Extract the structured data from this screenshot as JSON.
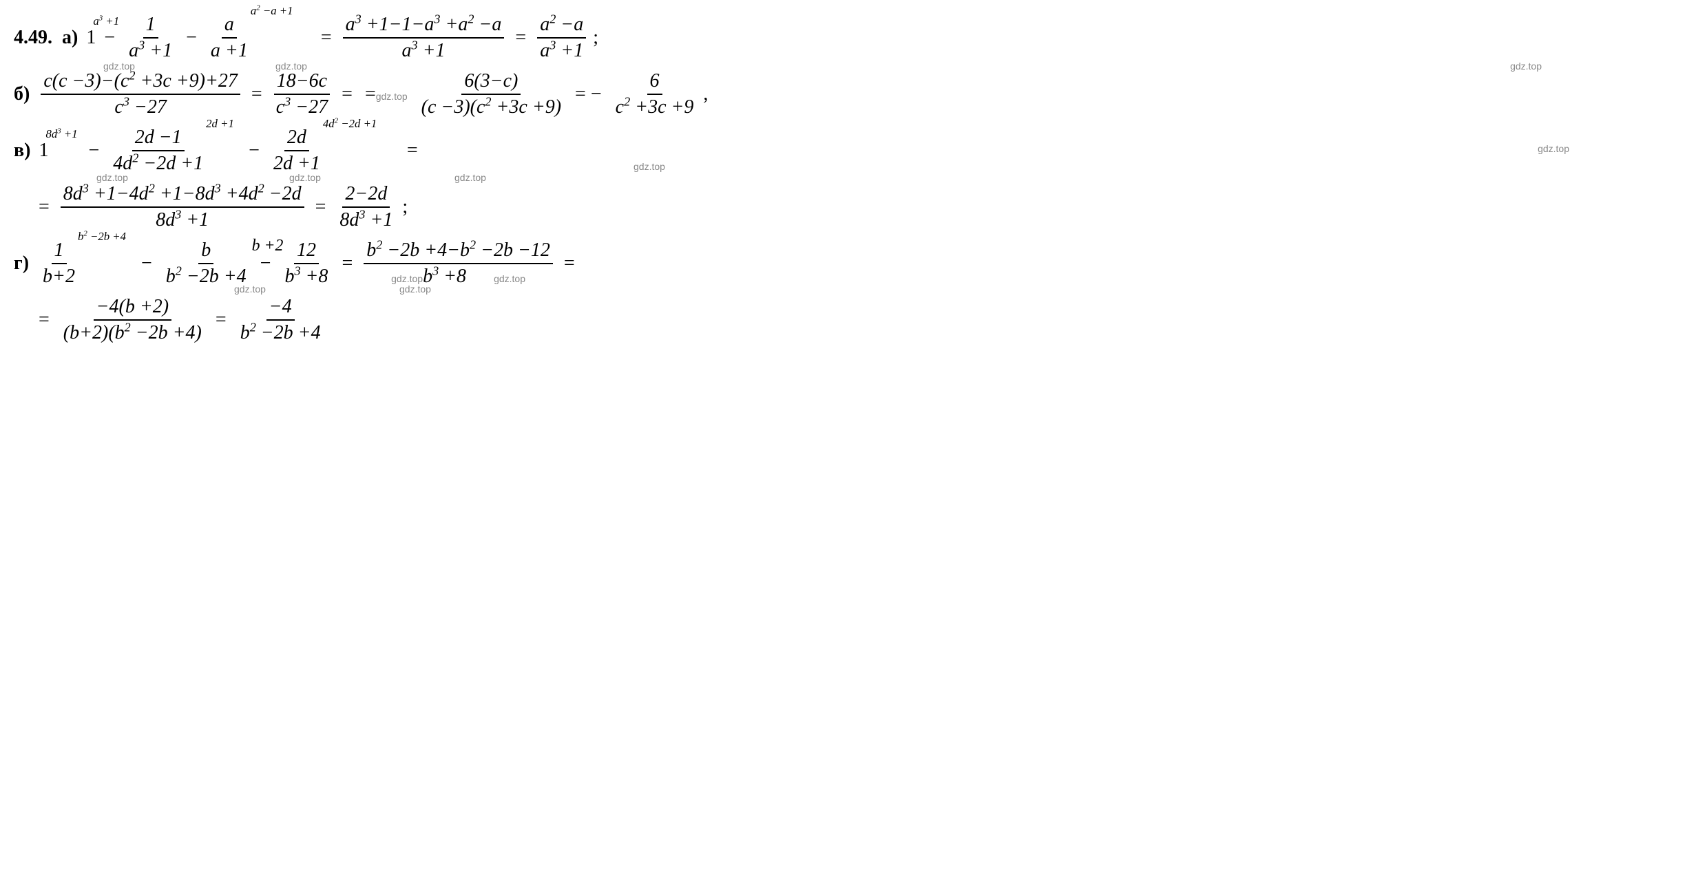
{
  "problem_number": "4.49.",
  "watermark_text": "gdz.top",
  "text_color": "#000000",
  "background_color": "#ffffff",
  "watermark_color": "#888888",
  "font_family": "Times New Roman",
  "base_font_size": 28,
  "parts": {
    "a": {
      "label": "а)",
      "term1": "1",
      "term1_annot": "a³ +1",
      "frac1_num": "1",
      "frac1_den": "a³ +1",
      "frac2_num": "a",
      "frac2_den": "a +1",
      "frac2_annot": "a² −a +1",
      "eq1_num": "a³ +1−1−a³ +a² −a",
      "eq1_den": "a³ +1",
      "eq2_num": "a² −a",
      "eq2_den": "a³ +1",
      "end": ";"
    },
    "b": {
      "label": "б)",
      "frac1_num": "c(c −3)−(c² +3c +9)+27",
      "frac1_den": "c³ −27",
      "eq1_num": "18−6c",
      "eq1_den": "c³ −27",
      "eq2_num": "6(3−c)",
      "eq2_den": "(c −3)(c² +3c +9)",
      "eq3_num": "6",
      "eq3_den": "c² +3c +9",
      "end": ","
    },
    "c": {
      "label": "в)",
      "term1": "1",
      "term1_annot": "8d³ +1",
      "frac1_num": "2d −1",
      "frac1_den": "4d² −2d +1",
      "frac1_annot": "2d +1",
      "frac2_num": "2d",
      "frac2_den": "2d +1",
      "frac2_annot": "4d² −2d +1",
      "line2_num": "8d³ +1−4d² +1−8d³ +4d² −2d",
      "line2_den": "8d³ +1",
      "line2_eq_num": "2−2d",
      "line2_eq_den": "8d³ +1",
      "end": ";"
    },
    "d": {
      "label": "г)",
      "frac1_num": "1",
      "frac1_den": "b+2",
      "frac1_annot": "b² −2b +4",
      "frac2_num": "b",
      "frac2_den": "b² −2b +4",
      "frac2_annot": "b +2",
      "frac3_num": "12",
      "frac3_den": "b³ +8",
      "eq1_num": "b² −2b +4−b² −2b −12",
      "eq1_den": "b³ +8",
      "line2_num": "−4(b +2)",
      "line2_den": "(b+2)(b² −2b +4)",
      "line2_eq_num": "−4",
      "line2_eq_den": "b² −2b +4"
    }
  },
  "operators": {
    "minus": "−",
    "equals": "=",
    "neg_equals": "= −"
  }
}
